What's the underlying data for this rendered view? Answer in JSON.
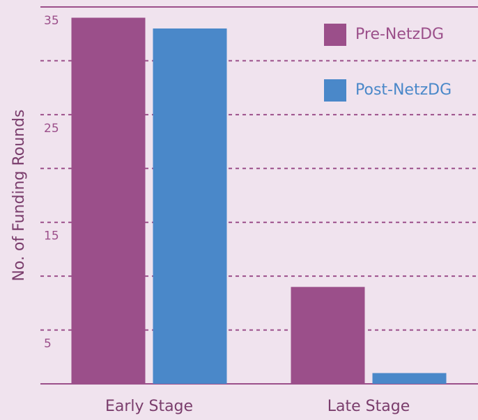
{
  "chart_data": {
    "type": "bar",
    "y_label": "No. of Funding Rounds",
    "categories": [
      "Early Stage",
      "Late Stage"
    ],
    "series": [
      {
        "name": "Pre-NetzDG",
        "color": "#9b4f8a",
        "values": [
          34,
          9
        ]
      },
      {
        "name": "Post-NetzDG",
        "color": "#4a88c9",
        "values": [
          33,
          1
        ]
      }
    ],
    "ylim": [
      0,
      35
    ],
    "yticks": [
      5,
      15,
      25,
      35
    ],
    "minor_yticks": [
      10,
      20,
      30
    ],
    "grid": true,
    "legend": "upper right"
  }
}
